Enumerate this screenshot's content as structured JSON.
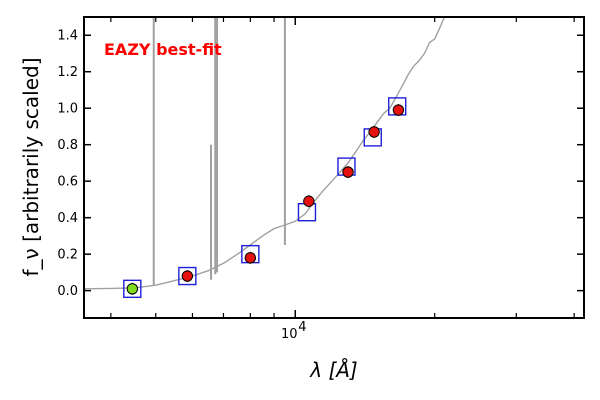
{
  "chart_data": {
    "type": "scatter",
    "title": "",
    "annotation": "EAZY best-fit",
    "xlabel": "λ [Å]",
    "ylabel": "f_ν [arbitrarily scaled]",
    "xscale": "log",
    "xlim": [
      3500,
      42000
    ],
    "ylim": [
      -0.15,
      1.5
    ],
    "yticks": [
      0.0,
      0.2,
      0.4,
      0.6,
      0.8,
      1.0,
      1.2,
      1.4
    ],
    "ytick_labels": [
      "0.0",
      "0.2",
      "0.4",
      "0.6",
      "0.8",
      "1.0",
      "1.2",
      "1.4"
    ],
    "xtick_labels": [
      {
        "value": 10000,
        "base": "10",
        "exp": "4"
      }
    ],
    "grid": false,
    "colors": {
      "model_line": "#a0a0a0",
      "model_box": "#1f1fd9",
      "observed": "#e6120f",
      "observed_first": "#7fdc1a",
      "annotation": "#ff0000"
    },
    "series": [
      {
        "kind": "line",
        "x": [
          3500,
          4000,
          4500,
          5000,
          5500,
          6000,
          6500,
          7000,
          7500,
          8000,
          8500,
          9000,
          9500,
          10000,
          10500,
          11000,
          11500,
          12000,
          12500,
          13000,
          13500,
          14000,
          14500,
          15000,
          15500,
          16000,
          16500,
          17000,
          17500,
          18000,
          18500,
          19000,
          19500,
          20000,
          20500,
          21000
        ],
        "y": [
          0.01,
          0.012,
          0.015,
          0.03,
          0.055,
          0.08,
          0.11,
          0.15,
          0.2,
          0.25,
          0.3,
          0.34,
          0.36,
          0.38,
          0.42,
          0.49,
          0.55,
          0.6,
          0.65,
          0.7,
          0.76,
          0.82,
          0.87,
          0.92,
          0.97,
          1.0,
          1.06,
          1.12,
          1.18,
          1.23,
          1.26,
          1.3,
          1.36,
          1.38,
          1.44,
          1.5
        ]
      },
      {
        "kind": "emission_lines",
        "x": [
          4950,
          6580,
          6720,
          6780,
          9500
        ],
        "top": [
          1.5,
          0.8,
          1.5,
          1.5,
          1.5
        ],
        "base": [
          0.03,
          0.06,
          0.09,
          0.1,
          0.25
        ]
      },
      {
        "kind": "model_photometry",
        "x": [
          4450,
          5850,
          8000,
          10600,
          12900,
          14700,
          16600
        ],
        "y": [
          0.01,
          0.08,
          0.2,
          0.43,
          0.68,
          0.84,
          1.01
        ]
      },
      {
        "kind": "observed_photometry",
        "x": [
          4450,
          5850,
          8000,
          10700,
          13000,
          14800,
          16700
        ],
        "y": [
          0.01,
          0.08,
          0.18,
          0.49,
          0.65,
          0.87,
          0.99
        ]
      }
    ]
  }
}
